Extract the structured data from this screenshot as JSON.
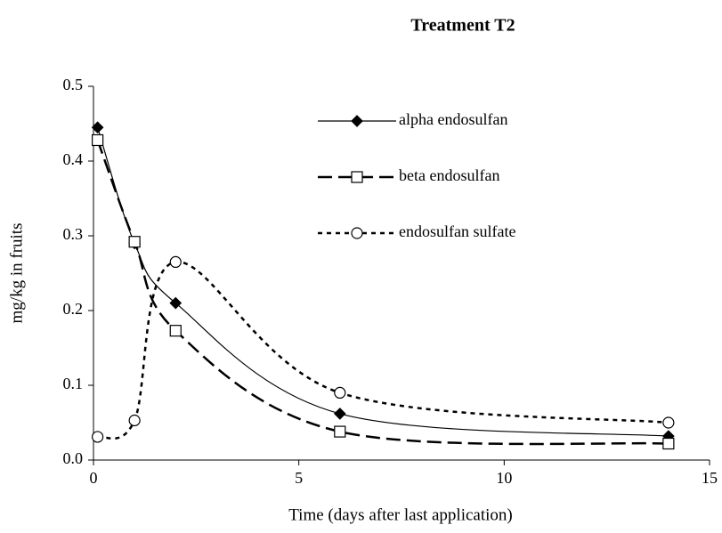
{
  "chart_data": {
    "type": "line",
    "title": "Treatment T2",
    "x_label": "Time (days after last application)",
    "y_label": "mg/kg in fruits",
    "xlim": [
      0,
      15
    ],
    "xticks": [
      0,
      5,
      10,
      15
    ],
    "ylim": [
      0,
      0.5
    ],
    "yticks": [
      {
        "value": 0,
        "label": "0.0"
      },
      0.1,
      0.2,
      0.3,
      0.4,
      0.5
    ],
    "legend": "upper right",
    "series": [
      {
        "name": "alpha endosulfan",
        "color": "#000000",
        "dash": "solid",
        "marker": "diamond",
        "x": [
          0.1,
          1,
          2,
          6,
          14
        ],
        "values": [
          0.445,
          0.29,
          0.21,
          0.062,
          0.032
        ]
      },
      {
        "name": "beta endosulfan",
        "color": "#000000",
        "dash": "long",
        "marker": "square",
        "x": [
          0.1,
          1,
          2,
          6,
          14
        ],
        "values": [
          0.428,
          0.292,
          0.173,
          0.038,
          0.022
        ]
      },
      {
        "name": "endosulfan sulfate",
        "color": "#000000",
        "dash": "short",
        "marker": "circle",
        "x": [
          0.1,
          1,
          2,
          6,
          14
        ],
        "values": [
          0.031,
          0.053,
          0.265,
          0.09,
          0.05
        ]
      }
    ]
  }
}
